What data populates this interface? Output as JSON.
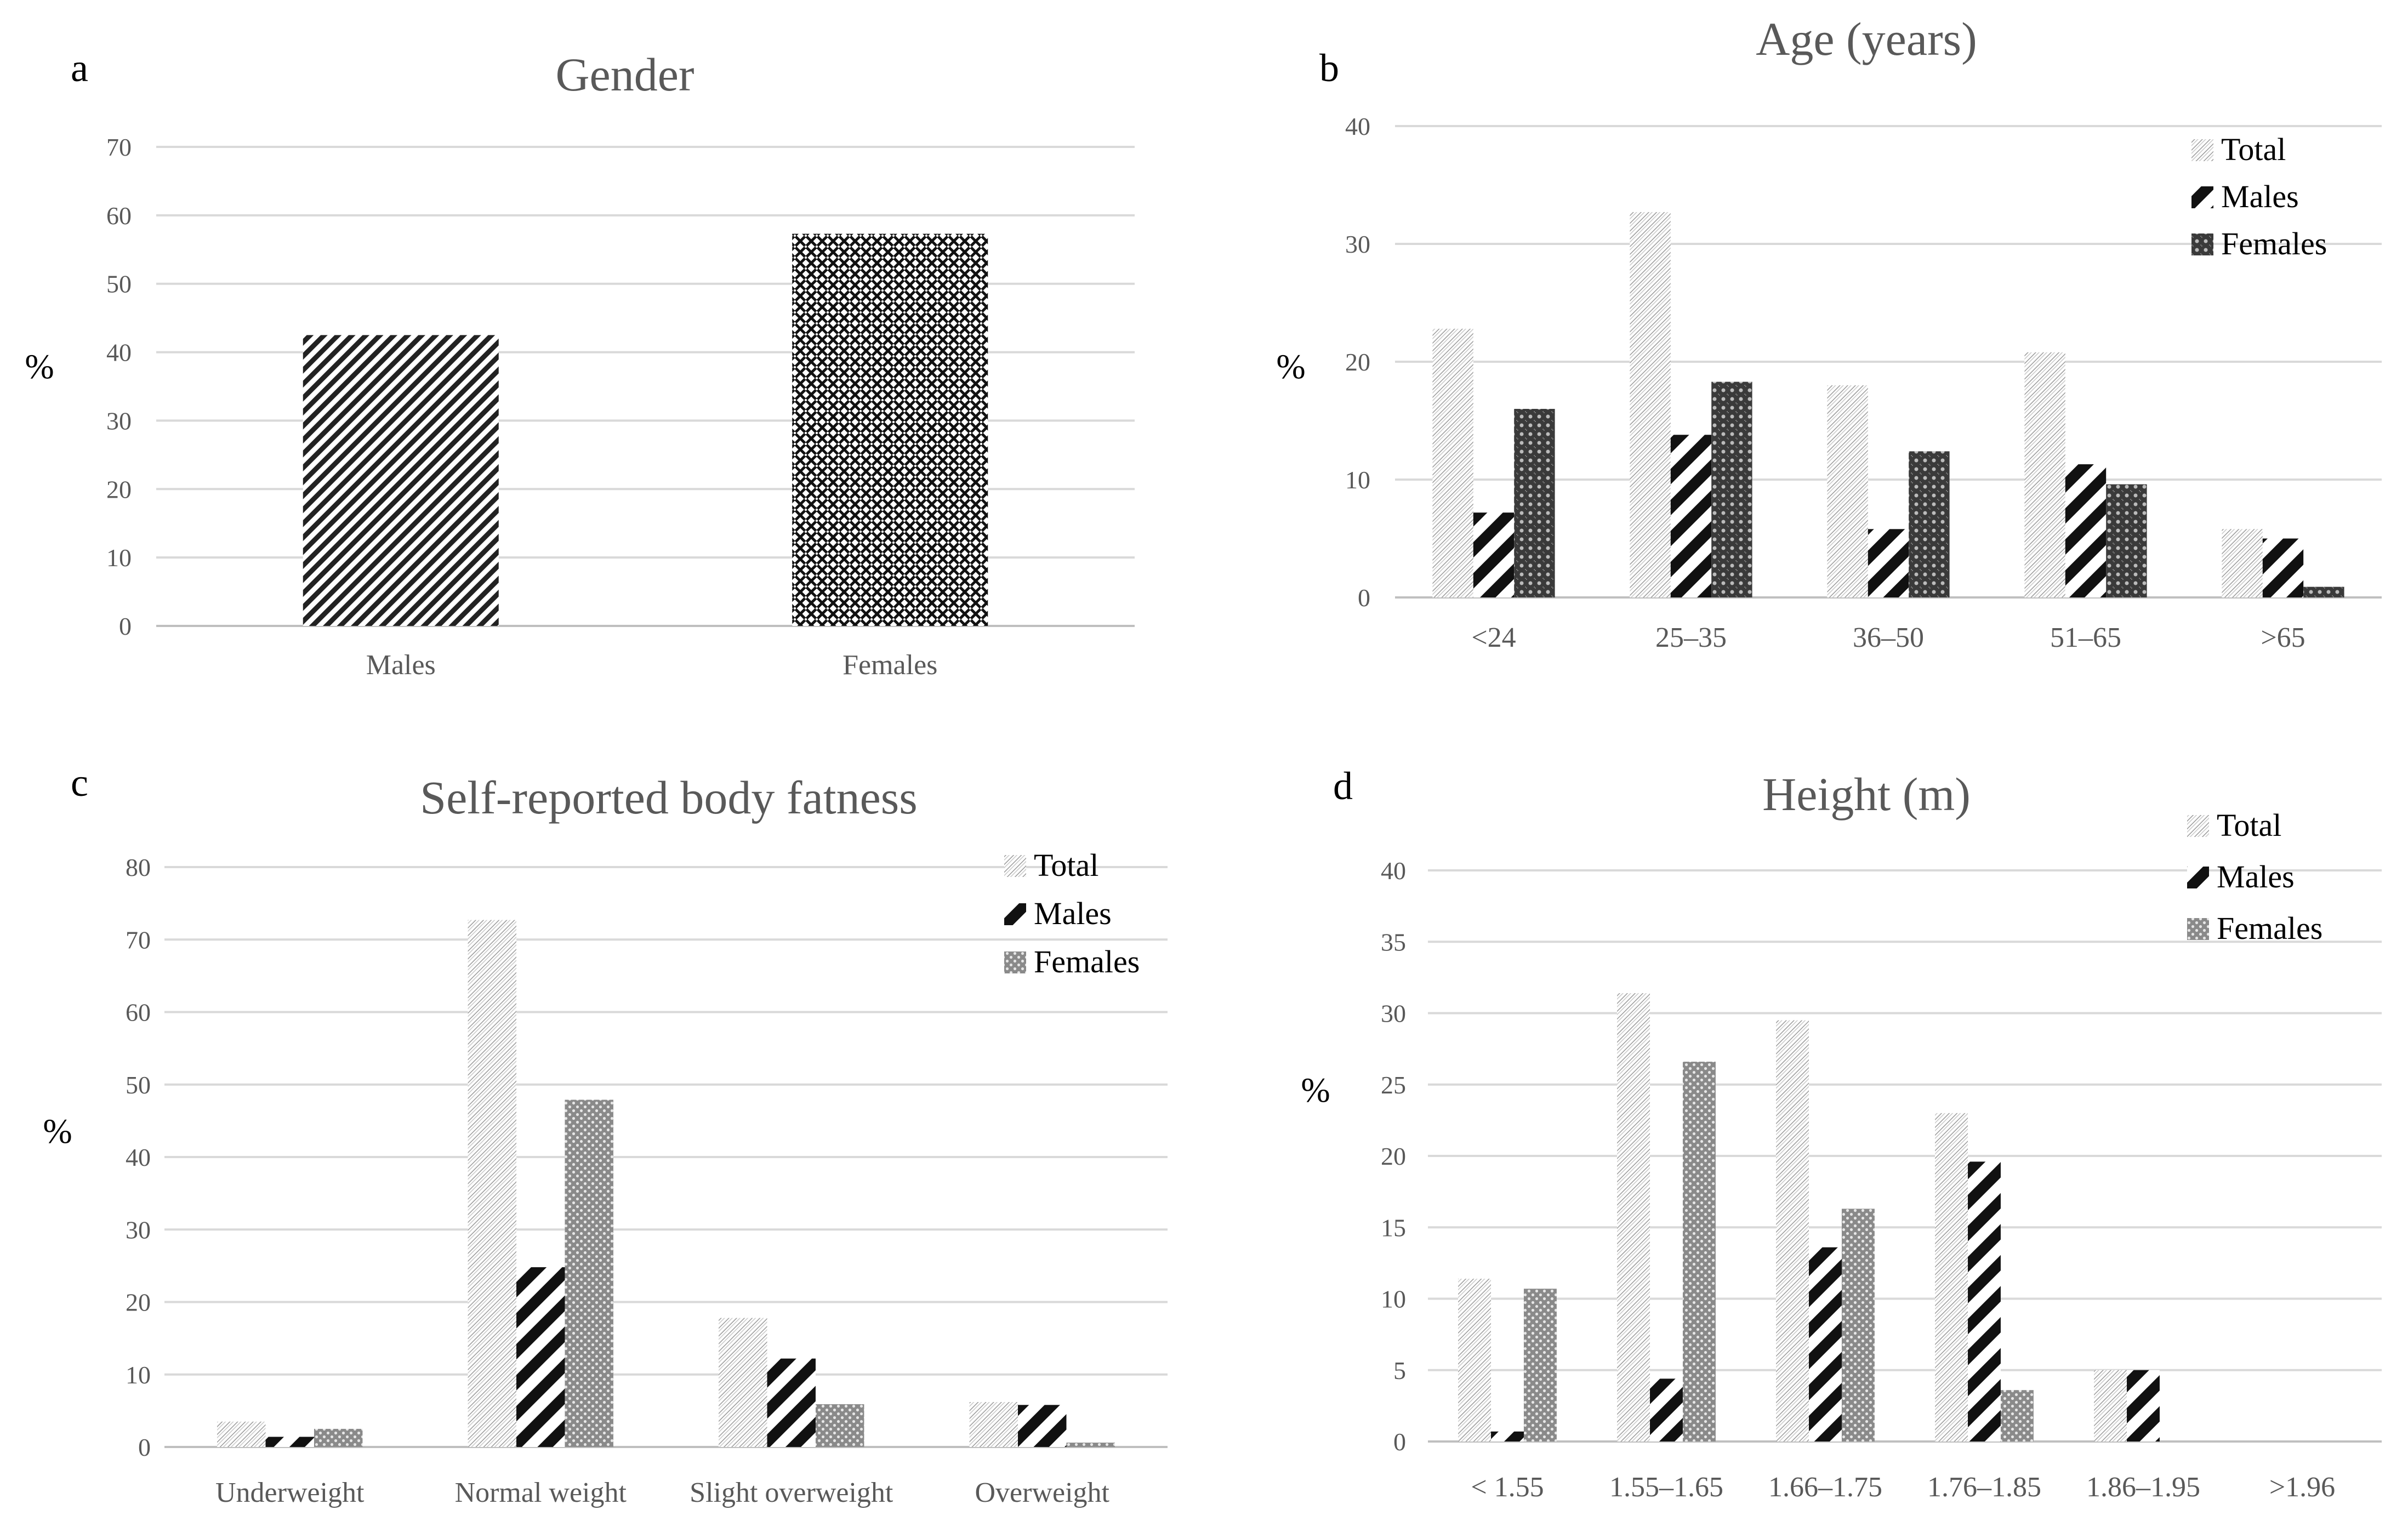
{
  "chart_data": [
    {
      "id": "a",
      "panel_label": "a",
      "type": "bar",
      "title": "Gender",
      "ylabel": "%",
      "ylim": [
        0,
        70
      ],
      "yticks": [
        0,
        10,
        20,
        30,
        40,
        50,
        60,
        70
      ],
      "categories": [
        "Males",
        "Females"
      ],
      "series": [
        {
          "values": [
            42.5,
            57.3
          ],
          "patterns": [
            "pat-diag-medium",
            "pat-cross-dark"
          ]
        }
      ],
      "grid": true,
      "legend": null
    },
    {
      "id": "b",
      "panel_label": "b",
      "type": "bar",
      "title": "Age (years)",
      "ylabel": "%",
      "ylim": [
        0,
        40
      ],
      "yticks": [
        0,
        10,
        20,
        30,
        40
      ],
      "categories": [
        "<24",
        "25–35",
        "36–50",
        "51–65",
        ">65"
      ],
      "series": [
        {
          "name": "Total",
          "values": [
            22.8,
            32.7,
            18.0,
            20.8,
            5.8
          ],
          "pattern": "pat-total"
        },
        {
          "name": "Males",
          "values": [
            7.2,
            13.8,
            5.8,
            11.3,
            5.0
          ],
          "pattern": "pat-males"
        },
        {
          "name": "Females",
          "values": [
            16.0,
            18.3,
            12.4,
            9.6,
            0.9
          ],
          "pattern": "pat-females-dark"
        }
      ],
      "grid": true,
      "legend": "top-right"
    },
    {
      "id": "c",
      "panel_label": "c",
      "type": "bar",
      "title": "Self-reported  body fatness",
      "ylabel": "%",
      "ylim": [
        0,
        80
      ],
      "yticks": [
        0,
        10,
        20,
        30,
        40,
        50,
        60,
        70,
        80
      ],
      "categories": [
        "Underweight",
        "Normal weight",
        "Slight overweight",
        "Overweight"
      ],
      "series": [
        {
          "name": "Total",
          "values": [
            3.5,
            72.7,
            17.8,
            6.2
          ],
          "pattern": "pat-total"
        },
        {
          "name": "Males",
          "values": [
            1.4,
            24.8,
            12.2,
            5.8
          ],
          "pattern": "pat-males"
        },
        {
          "name": "Females",
          "values": [
            2.5,
            47.9,
            5.9,
            0.6
          ],
          "pattern": "pat-females-light"
        }
      ],
      "grid": true,
      "legend": "top-right"
    },
    {
      "id": "d",
      "panel_label": "d",
      "type": "bar",
      "title": "Height (m)",
      "ylabel": "%",
      "ylim": [
        0,
        40
      ],
      "yticks": [
        0,
        5,
        10,
        15,
        20,
        25,
        30,
        35,
        40
      ],
      "categories": [
        "< 1.55",
        "1.55–1.65",
        "1.66–1.75",
        "1.76–1.85",
        "1.86–1.95",
        ">1.96"
      ],
      "series": [
        {
          "name": "Total",
          "values": [
            11.4,
            31.4,
            29.5,
            23.0,
            5.0,
            0
          ],
          "pattern": "pat-total"
        },
        {
          "name": "Males",
          "values": [
            0.7,
            4.4,
            13.6,
            19.6,
            5.0,
            0
          ],
          "pattern": "pat-males"
        },
        {
          "name": "Females",
          "values": [
            10.7,
            26.6,
            16.3,
            3.6,
            0,
            0
          ],
          "pattern": "pat-females-light"
        }
      ],
      "grid": true,
      "legend": "top-right"
    }
  ]
}
